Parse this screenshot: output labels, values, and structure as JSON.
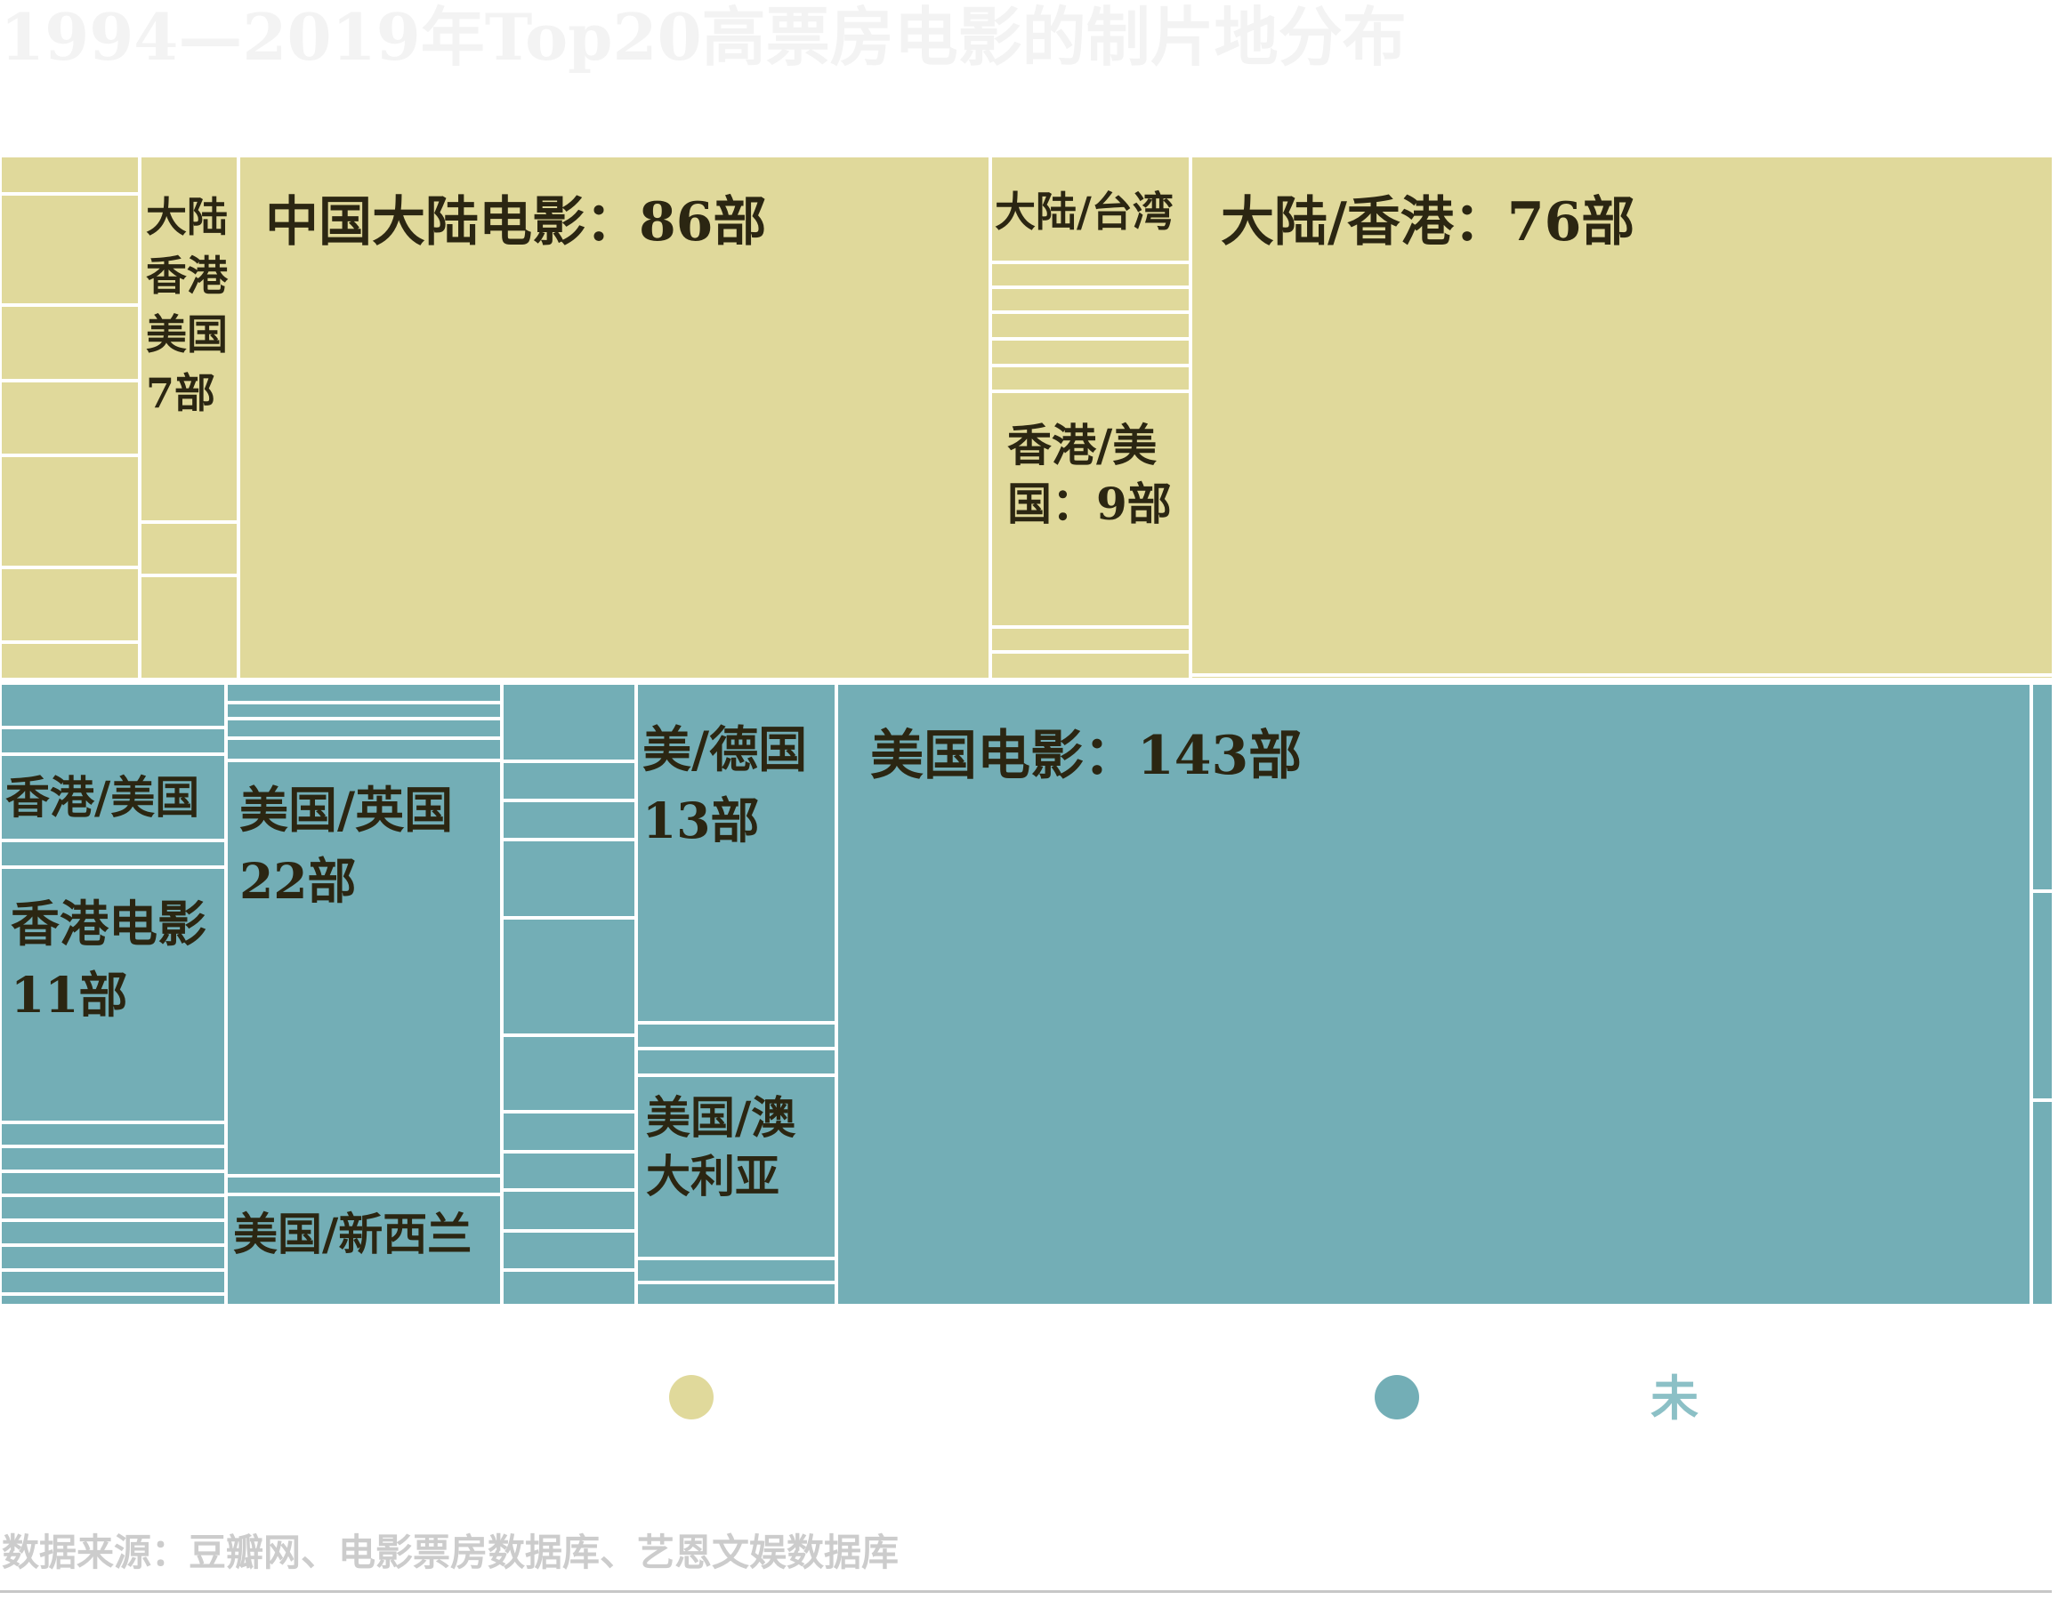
{
  "title": "1994—2019年Top20高票房电影的制片地分布",
  "source": "数据来源：豆瓣网、电影票房数据库、艺恩文娱数据库",
  "legend": {
    "text": "未",
    "colors": {
      "mainland_group": "#e0d99b",
      "other_group": "#73aeb6",
      "legend_text": "#8cc0c6"
    }
  },
  "chart_data": {
    "type": "treemap",
    "units": "部",
    "groups": [
      {
        "color": "#e0d99b",
        "items": [
          {
            "label": "中国大陆电影",
            "value": 86,
            "label_text": "中国大陆电影：86部"
          },
          {
            "label": "大陆/香港",
            "value": 76,
            "label_text": "大陆/香港：76部"
          },
          {
            "label": "香港/美国",
            "value": 9,
            "label_lines": [
              "香港/美",
              "国：9部"
            ]
          },
          {
            "label": "大陆/香港/美国",
            "value": 7,
            "label_lines": [
              "大陆",
              "香港",
              "美国",
              "7部"
            ]
          },
          {
            "label": "大陆/台湾",
            "value": null,
            "label_text": "大陆/台湾"
          }
        ]
      },
      {
        "color": "#73aeb6",
        "items": [
          {
            "label": "美国电影",
            "value": 143,
            "label_text": "美国电影：143部"
          },
          {
            "label": "美国/英国",
            "value": 22,
            "label_lines": [
              "美国/英国",
              "22部"
            ]
          },
          {
            "label": "美/德国",
            "value": 13,
            "label_lines": [
              "美/德国",
              "13部"
            ]
          },
          {
            "label": "香港电影",
            "value": 11,
            "label_lines": [
              "香港电影",
              "11部"
            ]
          },
          {
            "label": "香港/美国",
            "value": null,
            "label_text": "香港/美国"
          },
          {
            "label": "美国/澳大利亚",
            "value": null,
            "label_lines": [
              "美国/澳",
              "大利亚"
            ]
          },
          {
            "label": "美国/新西兰",
            "value": null,
            "label_text": "美国/新西兰"
          }
        ]
      }
    ]
  }
}
